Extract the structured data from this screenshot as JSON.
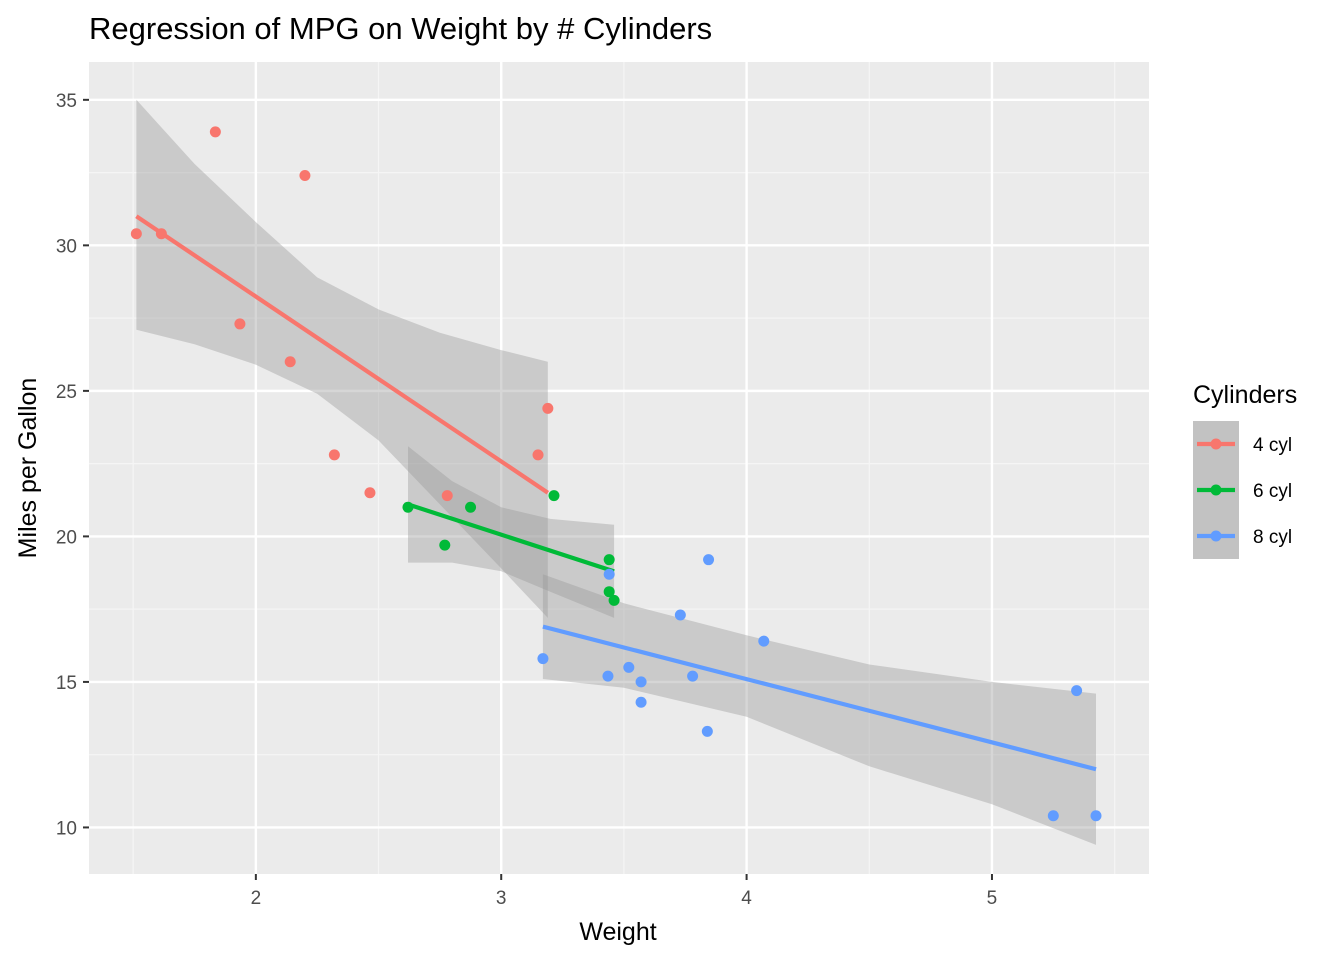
{
  "chart_data": {
    "type": "scatter",
    "title": "Regression of MPG on Weight by # Cylinders",
    "xlabel": "Weight",
    "ylabel": "Miles per Gallon",
    "xlim": [
      1.32,
      5.64
    ],
    "ylim": [
      8.4,
      36.3
    ],
    "x_ticks": [
      2,
      3,
      4,
      5
    ],
    "x_tick_labels": [
      "2",
      "3",
      "4",
      "5"
    ],
    "y_ticks": [
      10,
      15,
      20,
      25,
      30,
      35
    ],
    "y_tick_labels": [
      "10",
      "15",
      "20",
      "25",
      "30",
      "35"
    ],
    "grid": true,
    "legend": {
      "title": "Cylinders",
      "placement": "right"
    },
    "series": [
      {
        "name": "4 cyl",
        "color": "#F8766D",
        "points": [
          {
            "x": 1.513,
            "y": 30.4
          },
          {
            "x": 1.615,
            "y": 30.4
          },
          {
            "x": 1.835,
            "y": 33.9
          },
          {
            "x": 1.935,
            "y": 27.3
          },
          {
            "x": 2.14,
            "y": 26.0
          },
          {
            "x": 2.2,
            "y": 32.4
          },
          {
            "x": 2.32,
            "y": 22.8
          },
          {
            "x": 2.465,
            "y": 21.5
          },
          {
            "x": 2.78,
            "y": 21.4
          },
          {
            "x": 3.15,
            "y": 22.8
          },
          {
            "x": 3.19,
            "y": 24.4
          }
        ],
        "fit": {
          "x": [
            1.513,
            3.19
          ],
          "y": [
            31.0,
            21.5
          ]
        },
        "band": {
          "x": [
            1.513,
            1.75,
            2.0,
            2.25,
            2.5,
            2.75,
            3.0,
            3.19
          ],
          "upper": [
            35.0,
            32.8,
            30.8,
            28.9,
            27.8,
            27.0,
            26.4,
            26.0
          ],
          "lower": [
            27.1,
            26.6,
            25.9,
            24.9,
            23.3,
            21.1,
            18.9,
            17.2
          ]
        }
      },
      {
        "name": "6 cyl",
        "color": "#00BA38",
        "points": [
          {
            "x": 2.62,
            "y": 21.0
          },
          {
            "x": 2.875,
            "y": 21.0
          },
          {
            "x": 3.215,
            "y": 21.4
          },
          {
            "x": 3.44,
            "y": 18.1
          },
          {
            "x": 3.44,
            "y": 19.2
          },
          {
            "x": 3.46,
            "y": 17.8
          },
          {
            "x": 2.77,
            "y": 19.7
          }
        ],
        "fit": {
          "x": [
            2.62,
            3.46
          ],
          "y": [
            21.1,
            18.8
          ]
        },
        "band": {
          "x": [
            2.62,
            2.8,
            3.0,
            3.2,
            3.46
          ],
          "upper": [
            23.1,
            21.9,
            21.0,
            20.6,
            20.4
          ],
          "lower": [
            19.1,
            19.1,
            18.8,
            18.1,
            17.2
          ]
        }
      },
      {
        "name": "8 cyl",
        "color": "#619CFF",
        "points": [
          {
            "x": 3.44,
            "y": 18.7
          },
          {
            "x": 3.57,
            "y": 14.3
          },
          {
            "x": 4.07,
            "y": 16.4
          },
          {
            "x": 3.73,
            "y": 17.3
          },
          {
            "x": 3.78,
            "y": 15.2
          },
          {
            "x": 5.25,
            "y": 10.4
          },
          {
            "x": 5.424,
            "y": 10.4
          },
          {
            "x": 5.345,
            "y": 14.7
          },
          {
            "x": 3.52,
            "y": 15.5
          },
          {
            "x": 3.435,
            "y": 15.2
          },
          {
            "x": 3.84,
            "y": 13.3
          },
          {
            "x": 3.845,
            "y": 19.2
          },
          {
            "x": 3.17,
            "y": 15.8
          },
          {
            "x": 3.57,
            "y": 15.0
          }
        ],
        "fit": {
          "x": [
            3.17,
            5.424
          ],
          "y": [
            16.9,
            12.0
          ]
        },
        "band": {
          "x": [
            3.17,
            3.5,
            4.0,
            4.5,
            5.0,
            5.424
          ],
          "upper": [
            18.7,
            17.7,
            16.6,
            15.6,
            15.0,
            14.6
          ],
          "lower": [
            15.1,
            14.8,
            13.8,
            12.1,
            10.8,
            9.4
          ]
        }
      }
    ]
  }
}
